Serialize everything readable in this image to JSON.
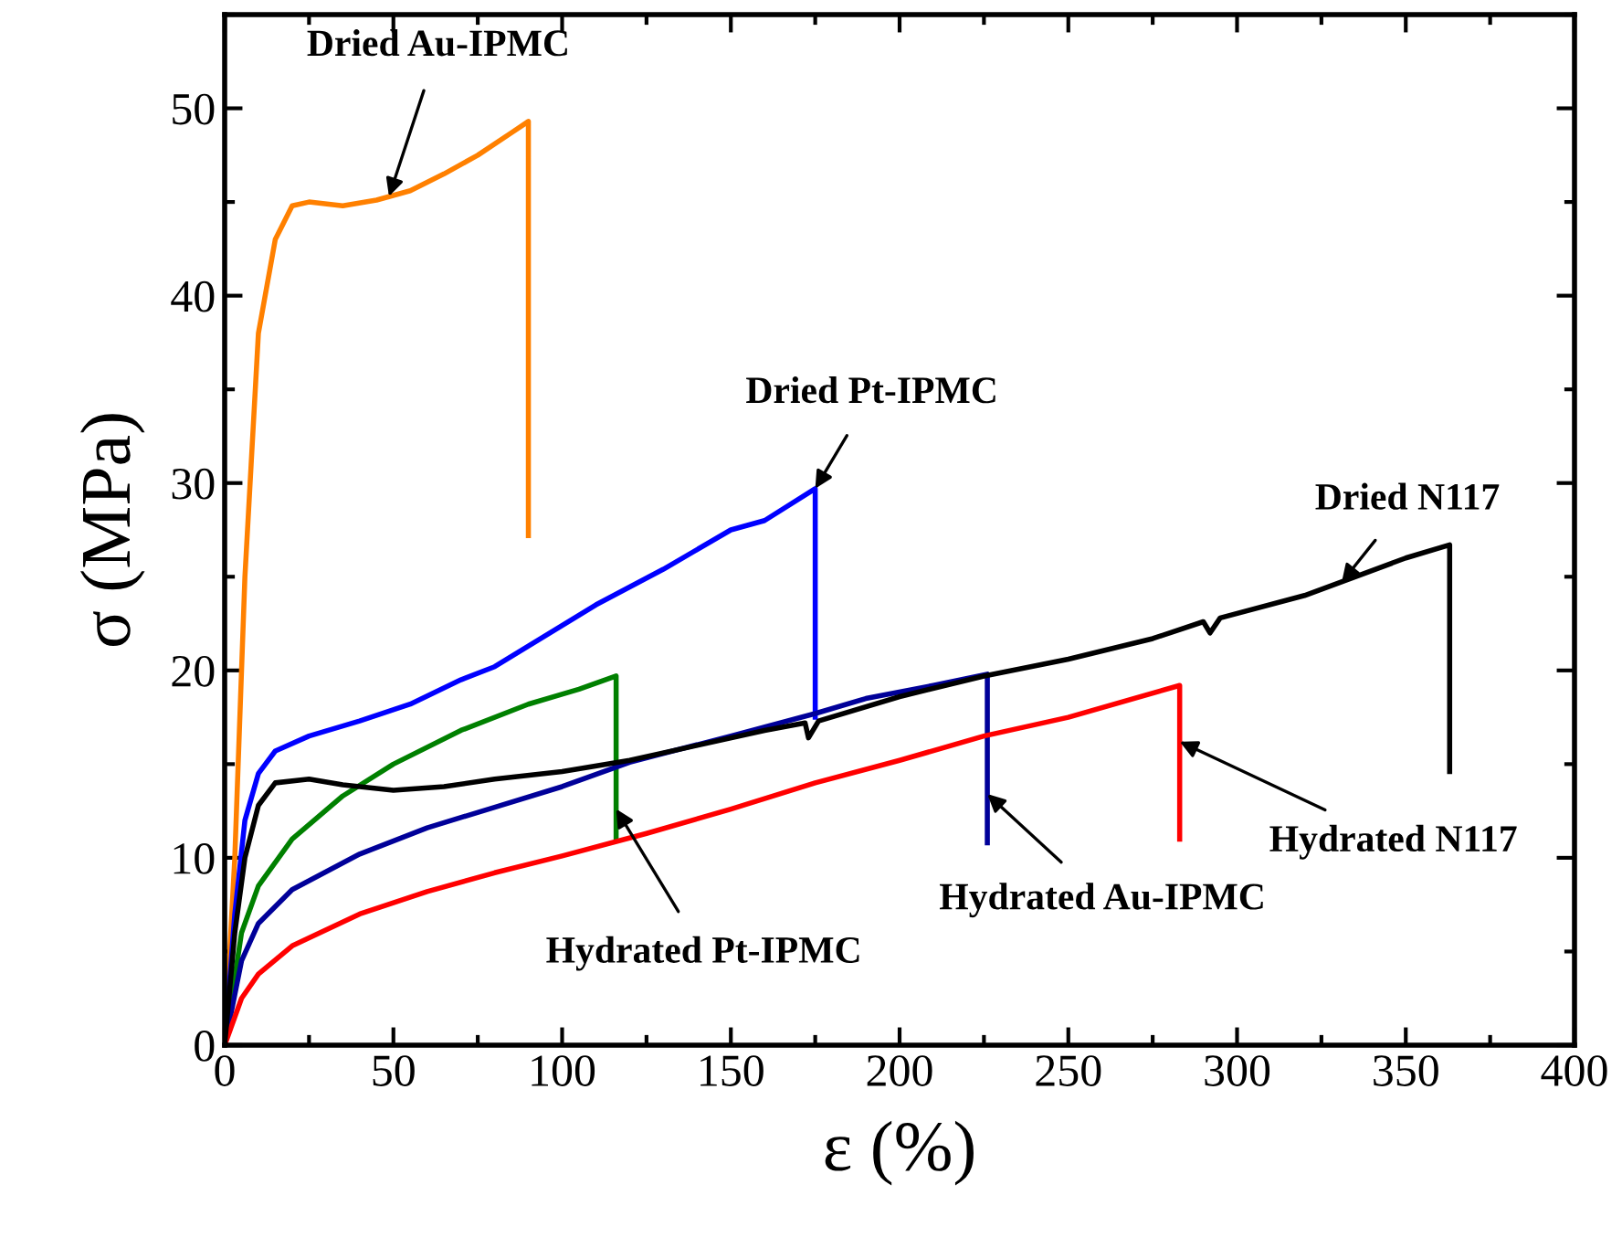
{
  "chart_data": {
    "type": "line",
    "xlabel": "ε (%)",
    "ylabel": "σ (MPa)",
    "xlim": [
      0,
      400
    ],
    "ylim": [
      0,
      55
    ],
    "xticks": [
      0,
      {
        "value": 25,
        "label": null
      },
      50,
      {
        "value": 75,
        "label": null
      },
      100,
      {
        "value": 125,
        "label": null
      },
      150,
      {
        "value": 175,
        "label": null
      },
      200,
      {
        "value": 225,
        "label": null
      },
      250,
      {
        "value": 275,
        "label": null
      },
      300,
      {
        "value": 325,
        "label": null
      },
      350,
      {
        "value": 375,
        "label": null
      },
      400
    ],
    "yticks": [
      0,
      {
        "value": 5,
        "label": null
      },
      10,
      {
        "value": 15,
        "label": null
      },
      20,
      {
        "value": 25,
        "label": null
      },
      30,
      {
        "value": 35,
        "label": null
      },
      40,
      {
        "value": 45,
        "label": null
      },
      50,
      {
        "value": 55,
        "label": null
      }
    ],
    "grid": false,
    "legend": false,
    "line_style": "solid",
    "marker": "none",
    "series": [
      {
        "color": "#ff8000",
        "x": [
          0,
          3,
          6,
          10,
          15,
          20,
          25,
          35,
          45,
          55,
          65,
          75,
          85,
          90,
          90
        ],
        "values": [
          0,
          10,
          25,
          38,
          43,
          44.8,
          45,
          44.8,
          45.1,
          45.6,
          46.5,
          47.5,
          48.7,
          49.3,
          27.2
        ]
      },
      {
        "color": "#0000ff",
        "x": [
          0,
          3,
          6,
          10,
          15,
          25,
          40,
          55,
          70,
          80,
          90,
          110,
          130,
          150,
          160,
          175,
          175
        ],
        "values": [
          0,
          7,
          12,
          14.5,
          15.7,
          16.5,
          17.3,
          18.2,
          19.5,
          20.2,
          21.3,
          23.5,
          25.4,
          27.5,
          28,
          29.7,
          17.5
        ]
      },
      {
        "color": "#008000",
        "x": [
          0,
          5,
          10,
          20,
          35,
          50,
          70,
          90,
          105,
          116,
          116
        ],
        "values": [
          0,
          6,
          8.5,
          11,
          13.3,
          15,
          16.8,
          18.2,
          19,
          19.7,
          11
        ]
      },
      {
        "color": "#000099",
        "x": [
          0,
          5,
          10,
          20,
          40,
          60,
          80,
          100,
          120,
          150,
          175,
          190,
          210,
          226,
          226
        ],
        "values": [
          0,
          4.5,
          6.5,
          8.3,
          10.2,
          11.6,
          12.7,
          13.8,
          15.1,
          16.5,
          17.7,
          18.5,
          19.2,
          19.8,
          10.8
        ]
      },
      {
        "color": "#ff0000",
        "x": [
          0,
          5,
          10,
          20,
          40,
          60,
          80,
          100,
          125,
          150,
          175,
          200,
          225,
          250,
          283,
          283
        ],
        "values": [
          0,
          2.5,
          3.8,
          5.3,
          7,
          8.2,
          9.2,
          10.1,
          11.3,
          12.6,
          14,
          15.2,
          16.5,
          17.5,
          19.2,
          11
        ]
      },
      {
        "color": "#000000",
        "x": [
          0,
          3,
          6,
          10,
          15,
          25,
          35,
          50,
          65,
          80,
          100,
          120,
          140,
          160,
          172,
          173,
          176,
          200,
          225,
          250,
          275,
          290,
          292,
          295,
          320,
          335,
          350,
          363,
          363
        ],
        "values": [
          0,
          6,
          10,
          12.8,
          14,
          14.2,
          13.9,
          13.6,
          13.8,
          14.2,
          14.6,
          15.2,
          16,
          16.8,
          17.2,
          16.4,
          17.3,
          18.6,
          19.7,
          20.6,
          21.7,
          22.6,
          22,
          22.8,
          24,
          25,
          26,
          26.7,
          14.6
        ]
      }
    ],
    "annotations": [
      {
        "text": "Dried Au-IPMC",
        "x": 48.7,
        "y": 45.3
      },
      {
        "text": "Dried Pt-IPMC",
        "x": 175,
        "y": 29.7
      },
      {
        "text": "Dried N117",
        "x": 331,
        "y": 24.7
      },
      {
        "text": "Hydrated N117",
        "x": 283,
        "y": 16.2
      },
      {
        "text": "Hydrated Au-IPMC",
        "x": 226,
        "y": 13.4
      },
      {
        "text": "Hydrated Pt-IPMC",
        "x": 116,
        "y": 12.6
      }
    ]
  }
}
